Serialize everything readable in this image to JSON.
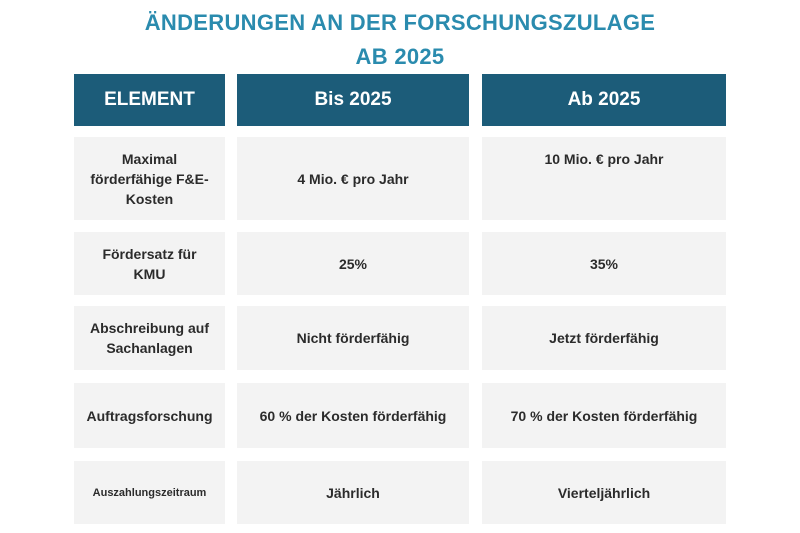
{
  "title": {
    "line1": "ÄNDERUNGEN AN DER FORSCHUNGSZULAGE",
    "line2": "AB 2025"
  },
  "table": {
    "headers": [
      "ELEMENT",
      "Bis 2025",
      "Ab 2025"
    ],
    "rows": [
      [
        "Maximal förderfähige F&E-Kosten",
        "4 Mio. € pro Jahr",
        "10 Mio. € pro Jahr"
      ],
      [
        "Fördersatz für KMU",
        "25%",
        "35%"
      ],
      [
        "Abschreibung auf Sachanlagen",
        "Nicht förderfähig",
        "Jetzt förderfähig"
      ],
      [
        "Auftragsforschung",
        "60 % der Kosten förderfähig",
        "70 % der Kosten förderfähig"
      ],
      [
        "Auszahlungszeitraum",
        "Jährlich",
        "Vierteljährlich"
      ]
    ]
  },
  "colors": {
    "title": "#2a8bae",
    "header_bg": "#1c5c79",
    "header_text": "#ffffff",
    "cell_bg": "#f3f3f3",
    "cell_text": "#2b2b2b"
  }
}
